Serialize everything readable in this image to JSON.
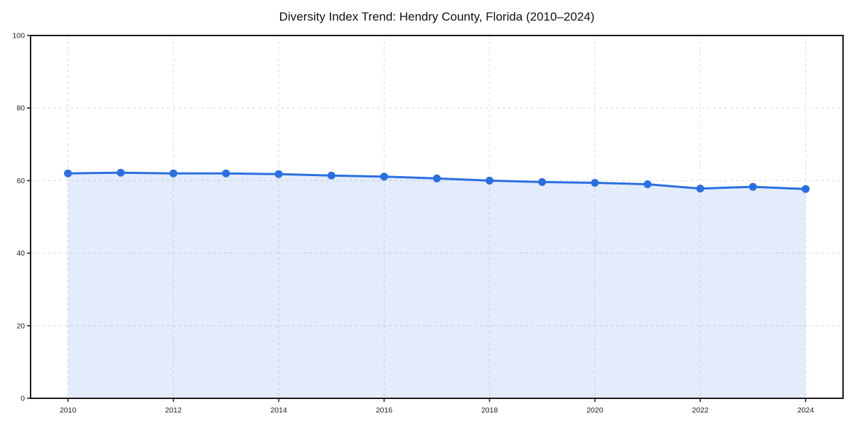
{
  "chart_data": {
    "type": "area",
    "title": "Diversity Index Trend: Hendry County, Florida (2010–2024)",
    "xlabel": "",
    "ylabel": "",
    "x": [
      2010,
      2011,
      2012,
      2013,
      2014,
      2015,
      2016,
      2017,
      2018,
      2019,
      2020,
      2021,
      2022,
      2023,
      2024
    ],
    "values": [
      62.0,
      62.2,
      62.0,
      62.0,
      61.8,
      61.4,
      61.1,
      60.6,
      60.0,
      59.6,
      59.4,
      59.0,
      57.8,
      58.3,
      57.7
    ],
    "series_name": "Diversity Index",
    "xlim": [
      2009.29,
      2024.71
    ],
    "ylim": [
      0,
      100
    ],
    "x_ticks": [
      2010,
      2012,
      2014,
      2016,
      2018,
      2020,
      2022,
      2024
    ],
    "x_tick_labels": [
      "2010",
      "2012",
      "2014",
      "2016",
      "2018",
      "2020",
      "2022",
      "2024"
    ],
    "y_ticks": [
      0,
      20,
      40,
      60,
      80,
      100
    ],
    "y_tick_labels": [
      "0",
      "20",
      "40",
      "60",
      "80",
      "100"
    ],
    "grid": "dashed",
    "legend": null,
    "colors": {
      "line": "#2a6fe2",
      "marker": "#2a6fe2",
      "fill": "#2a6fe2",
      "fill_opacity": 0.13,
      "gridline": "#dcdcdc",
      "spine": "#1a1a1a",
      "tick_label": "#1a1a1a",
      "title": "#111111",
      "background": "#ffffff"
    }
  }
}
